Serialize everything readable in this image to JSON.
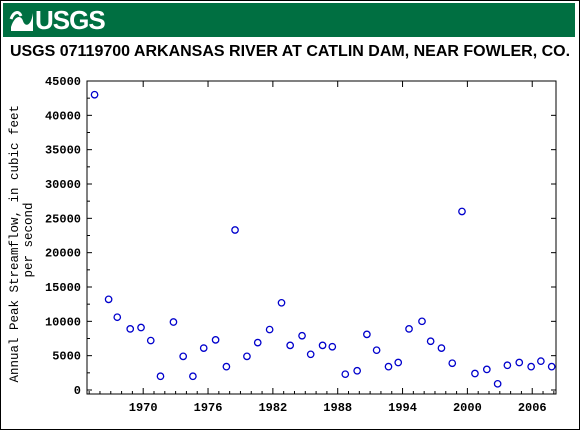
{
  "banner": {
    "logo_text": "USGS",
    "color": "#006f41"
  },
  "chart_data": {
    "type": "scatter",
    "title": "USGS 07119700 ARKANSAS RIVER AT CATLIN DAM, NEAR FOWLER, CO.",
    "xlabel": "",
    "ylabel": "Annual Peak Streamflow, in cubic feet per second",
    "ylabel_lines": [
      "Annual Peak Streamflow, in cubic feet",
      "per second"
    ],
    "xlim": [
      1964.8,
      2008.2
    ],
    "ylim": [
      0,
      45000
    ],
    "x_ticks": [
      1970,
      1976,
      1982,
      1988,
      1994,
      2000,
      2006
    ],
    "y_ticks": [
      0,
      5000,
      10000,
      15000,
      20000,
      25000,
      30000,
      35000,
      40000,
      45000
    ],
    "grid": false,
    "marker": "open-circle",
    "marker_color": "#0000cc",
    "series": [
      {
        "x": [
          1965.5,
          1966.8,
          1967.6,
          1968.8,
          1969.8,
          1970.7,
          1971.6,
          1972.8,
          1973.7,
          1974.6,
          1975.6,
          1976.7,
          1977.7,
          1978.5,
          1979.6,
          1980.6,
          1981.7,
          1982.8,
          1983.6,
          1984.7,
          1985.5,
          1986.6,
          1987.5,
          1988.7,
          1989.8,
          1990.7,
          1991.6,
          1992.7,
          1993.6,
          1994.6,
          1995.8,
          1996.6,
          1997.6,
          1998.6,
          1999.5,
          2000.7,
          2001.8,
          2002.8,
          2003.7,
          2004.8,
          2005.9,
          2006.8,
          2007.8
        ],
        "y": [
          43000,
          13200,
          10600,
          8900,
          9100,
          7200,
          2000,
          9900,
          4900,
          2000,
          6100,
          7300,
          3400,
          23300,
          4900,
          6900,
          8800,
          12700,
          6500,
          7900,
          5200,
          6500,
          6300,
          2300,
          2800,
          8100,
          5800,
          3400,
          4000,
          8900,
          10000,
          7100,
          6100,
          3900,
          26000,
          2400,
          3000,
          900,
          3600,
          4000,
          3400,
          4200,
          3400
        ]
      }
    ]
  }
}
